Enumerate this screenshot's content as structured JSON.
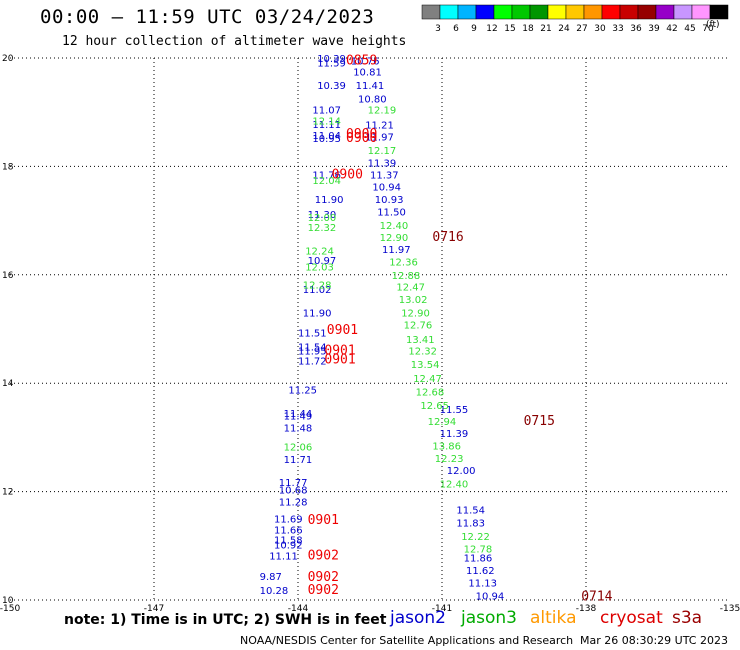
{
  "header": {
    "title": "00:00 – 11:59 UTC 03/24/2023",
    "subtitle": "12 hour collection of altimeter wave heights"
  },
  "legend": {
    "colors": [
      "#808080",
      "#00ffff",
      "#00b4ff",
      "#0000ff",
      "#00ff00",
      "#00c800",
      "#009600",
      "#ffff00",
      "#ffc800",
      "#ff9600",
      "#ff0000",
      "#c80000",
      "#960000",
      "#9600c8",
      "#c896ff",
      "#ff96ff",
      "#000000"
    ],
    "labels": [
      "3",
      "6",
      "9",
      "12",
      "15",
      "18",
      "21",
      "24",
      "27",
      "30",
      "33",
      "36",
      "39",
      "42",
      "45",
      "70"
    ],
    "units": "(ft)"
  },
  "footer": {
    "note": "note:  1) Time is in UTC;  2) SWH is in feet",
    "satellites": [
      {
        "name": "jason2",
        "color": "#0000cc"
      },
      {
        "name": "jason3",
        "color": "#00aa00"
      },
      {
        "name": "altika",
        "color": "#ff9900"
      },
      {
        "name": "cryosat",
        "color": "#dd0000"
      },
      {
        "name": "s3a",
        "color": "#990000"
      }
    ],
    "credit": "NOAA/NESDIS Center for Satellite Applications and Research",
    "generated": "Mar 26 08:30:29 UTC 2023"
  },
  "chart_data": {
    "type": "scatter",
    "xlim": [
      -150,
      -135
    ],
    "ylim": [
      10,
      20
    ],
    "x_ticks": [
      "-150",
      "-147",
      "-144",
      "-141",
      "-138",
      "-135"
    ],
    "y_ticks": [
      "10",
      "12",
      "14",
      "16",
      "18",
      "20"
    ],
    "grid": true,
    "series": [
      {
        "name": "jason2",
        "color": "#0000cc",
        "points": [
          {
            "x": -143.6,
            "y": 20.0,
            "label": "10.39"
          },
          {
            "x": -143.6,
            "y": 19.92,
            "label": "11.59"
          },
          {
            "x": -143.6,
            "y": 19.5,
            "label": "10.39"
          },
          {
            "x": -143.7,
            "y": 19.05,
            "label": "11.07"
          },
          {
            "x": -143.7,
            "y": 18.78,
            "label": "11.11"
          },
          {
            "x": -143.7,
            "y": 18.58,
            "label": "11.04"
          },
          {
            "x": -143.7,
            "y": 18.52,
            "label": "10.95"
          },
          {
            "x": -143.7,
            "y": 17.85,
            "label": "11.76"
          },
          {
            "x": -143.65,
            "y": 17.4,
            "label": "11.90"
          },
          {
            "x": -143.8,
            "y": 17.12,
            "label": "11.30"
          },
          {
            "x": -143.8,
            "y": 16.27,
            "label": "10.97"
          },
          {
            "x": -143.9,
            "y": 15.74,
            "label": "11.02"
          },
          {
            "x": -143.9,
            "y": 15.3,
            "label": "11.90"
          },
          {
            "x": -144.0,
            "y": 14.94,
            "label": "11.51"
          },
          {
            "x": -144.0,
            "y": 14.68,
            "label": "11.54"
          },
          {
            "x": -144.0,
            "y": 14.6,
            "label": "11.95"
          },
          {
            "x": -144.0,
            "y": 14.42,
            "label": "11.72"
          },
          {
            "x": -144.2,
            "y": 13.88,
            "label": "11.25"
          },
          {
            "x": -144.3,
            "y": 13.45,
            "label": "11.44"
          },
          {
            "x": -144.3,
            "y": 13.4,
            "label": "11.49"
          },
          {
            "x": -144.3,
            "y": 13.18,
            "label": "11.48"
          },
          {
            "x": -144.3,
            "y": 12.6,
            "label": "11.71"
          },
          {
            "x": -144.4,
            "y": 12.18,
            "label": "11.77"
          },
          {
            "x": -144.4,
            "y": 12.04,
            "label": "10.68"
          },
          {
            "x": -144.4,
            "y": 11.82,
            "label": "11.28"
          },
          {
            "x": -144.5,
            "y": 11.5,
            "label": "11.69"
          },
          {
            "x": -144.5,
            "y": 11.3,
            "label": "11.66"
          },
          {
            "x": -144.5,
            "y": 11.12,
            "label": "11.58"
          },
          {
            "x": -144.5,
            "y": 11.02,
            "label": "10.92"
          },
          {
            "x": -144.6,
            "y": 10.82,
            "label": "11.11"
          },
          {
            "x": -144.8,
            "y": 10.44,
            "label": "9.87"
          },
          {
            "x": -144.8,
            "y": 10.18,
            "label": "10.28"
          },
          {
            "x": -142.9,
            "y": 19.95,
            "label": "10.76"
          },
          {
            "x": -142.85,
            "y": 19.75,
            "label": "10.81"
          },
          {
            "x": -142.8,
            "y": 19.5,
            "label": "11.41"
          },
          {
            "x": -142.75,
            "y": 19.25,
            "label": "10.80"
          },
          {
            "x": -142.6,
            "y": 18.77,
            "label": "11.21"
          },
          {
            "x": -142.6,
            "y": 18.55,
            "label": "11.97"
          },
          {
            "x": -142.55,
            "y": 18.07,
            "label": "11.39"
          },
          {
            "x": -142.5,
            "y": 17.85,
            "label": "11.37"
          },
          {
            "x": -142.45,
            "y": 17.63,
            "label": "10.94"
          },
          {
            "x": -142.4,
            "y": 17.4,
            "label": "10.93"
          },
          {
            "x": -142.35,
            "y": 17.17,
            "label": "11.50"
          },
          {
            "x": -142.25,
            "y": 16.48,
            "label": "11.97"
          },
          {
            "x": -141.05,
            "y": 13.52,
            "label": "11.55"
          },
          {
            "x": -141.05,
            "y": 13.08,
            "label": "11.39"
          },
          {
            "x": -140.9,
            "y": 12.4,
            "label": "12.00"
          },
          {
            "x": -140.7,
            "y": 11.67,
            "label": "11.54"
          },
          {
            "x": -140.7,
            "y": 11.43,
            "label": "11.83"
          },
          {
            "x": -140.55,
            "y": 10.78,
            "label": "11.86"
          },
          {
            "x": -140.5,
            "y": 10.55,
            "label": "11.62"
          },
          {
            "x": -140.45,
            "y": 10.32,
            "label": "11.13"
          },
          {
            "x": -140.3,
            "y": 10.08,
            "label": "10.94"
          }
        ]
      },
      {
        "name": "jason3",
        "color": "#33dd33",
        "points": [
          {
            "x": -143.7,
            "y": 18.85,
            "label": "12.14"
          },
          {
            "x": -143.7,
            "y": 17.75,
            "label": "12.04"
          },
          {
            "x": -143.8,
            "y": 17.07,
            "label": "12.00"
          },
          {
            "x": -143.8,
            "y": 16.88,
            "label": "12.32"
          },
          {
            "x": -143.85,
            "y": 16.45,
            "label": "12.24"
          },
          {
            "x": -143.85,
            "y": 16.15,
            "label": "12.03"
          },
          {
            "x": -143.9,
            "y": 15.82,
            "label": "12.28"
          },
          {
            "x": -144.3,
            "y": 12.83,
            "label": "12.06"
          },
          {
            "x": -142.55,
            "y": 19.05,
            "label": "12.19"
          },
          {
            "x": -142.55,
            "y": 18.3,
            "label": "12.17"
          },
          {
            "x": -142.3,
            "y": 16.92,
            "label": "12.40"
          },
          {
            "x": -142.3,
            "y": 16.7,
            "label": "12.90"
          },
          {
            "x": -142.1,
            "y": 16.25,
            "label": "12.36"
          },
          {
            "x": -142.05,
            "y": 16.0,
            "label": "12.88"
          },
          {
            "x": -141.95,
            "y": 15.78,
            "label": "12.47"
          },
          {
            "x": -141.9,
            "y": 15.55,
            "label": "13.02"
          },
          {
            "x": -141.85,
            "y": 15.3,
            "label": "12.90"
          },
          {
            "x": -141.8,
            "y": 15.08,
            "label": "12.76"
          },
          {
            "x": -141.75,
            "y": 14.82,
            "label": "13.41"
          },
          {
            "x": -141.7,
            "y": 14.6,
            "label": "12.32"
          },
          {
            "x": -141.65,
            "y": 14.35,
            "label": "13.54"
          },
          {
            "x": -141.6,
            "y": 14.1,
            "label": "12.47"
          },
          {
            "x": -141.55,
            "y": 13.85,
            "label": "12.68"
          },
          {
            "x": -141.45,
            "y": 13.6,
            "label": "12.65"
          },
          {
            "x": -141.3,
            "y": 13.3,
            "label": "12.94"
          },
          {
            "x": -141.2,
            "y": 12.85,
            "label": "13.86"
          },
          {
            "x": -141.15,
            "y": 12.62,
            "label": "12.23"
          },
          {
            "x": -141.05,
            "y": 12.15,
            "label": "12.40"
          },
          {
            "x": -140.6,
            "y": 11.18,
            "label": "12.22"
          },
          {
            "x": -140.55,
            "y": 10.95,
            "label": "12.78"
          }
        ]
      },
      {
        "name": "cryosat",
        "color": "#ee0000",
        "points": [
          {
            "x": -143.0,
            "y": 19.95,
            "label": "0859"
          },
          {
            "x": -143.0,
            "y": 18.6,
            "label": "0900"
          },
          {
            "x": -143.0,
            "y": 18.52,
            "label": "0900"
          },
          {
            "x": -143.3,
            "y": 17.85,
            "label": "0900"
          },
          {
            "x": -143.4,
            "y": 14.98,
            "label": "0901"
          },
          {
            "x": -143.45,
            "y": 14.6,
            "label": "0901"
          },
          {
            "x": -143.45,
            "y": 14.44,
            "label": "0901"
          },
          {
            "x": -143.8,
            "y": 11.48,
            "label": "0901"
          },
          {
            "x": -143.8,
            "y": 10.82,
            "label": "0902"
          },
          {
            "x": -143.8,
            "y": 10.42,
            "label": "0902"
          },
          {
            "x": -143.8,
            "y": 10.18,
            "label": "0902"
          }
        ]
      },
      {
        "name": "s3a",
        "color": "#880000",
        "points": [
          {
            "x": -141.2,
            "y": 16.7,
            "label": "0716"
          },
          {
            "x": -139.3,
            "y": 13.3,
            "label": "0715"
          },
          {
            "x": -138.1,
            "y": 10.06,
            "label": "0714"
          }
        ]
      }
    ]
  }
}
